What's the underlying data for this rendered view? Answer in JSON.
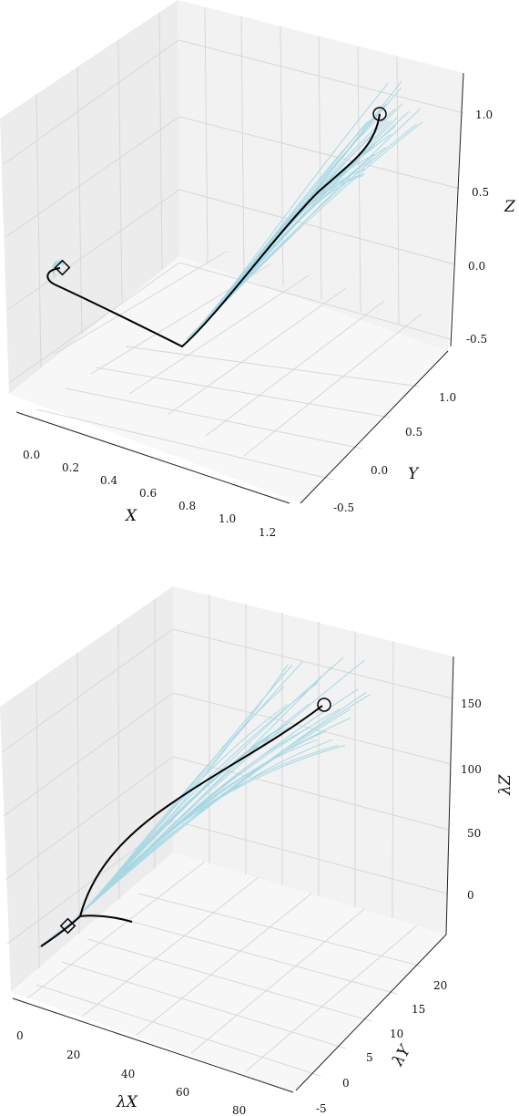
{
  "chart_data": [
    {
      "type": "line3d",
      "title": "",
      "axes": {
        "x": {
          "label": "X",
          "ticks": [
            "0.0",
            "0.2",
            "0.4",
            "0.6",
            "0.8",
            "1.0",
            "1.2"
          ]
        },
        "y": {
          "label": "Y",
          "ticks": [
            "-0.5",
            "0.0",
            "0.5",
            "1.0"
          ]
        },
        "z": {
          "label": "Z",
          "ticks": [
            "-0.5",
            "0.0",
            "0.5",
            "1.0"
          ]
        }
      },
      "series": [
        {
          "role": "sample trajectories",
          "color": "#a6d8e4",
          "count": 25
        },
        {
          "role": "mean trajectory",
          "color": "#000000"
        }
      ],
      "markers": [
        {
          "shape": "diamond",
          "at": "start"
        },
        {
          "shape": "circle",
          "at": "end"
        }
      ],
      "grid": true
    },
    {
      "type": "line3d",
      "title": "",
      "axes": {
        "x": {
          "label": "λX",
          "ticks": [
            "0",
            "20",
            "40",
            "60",
            "80"
          ]
        },
        "y": {
          "label": "λY",
          "ticks": [
            "-5",
            "0",
            "5",
            "10",
            "15",
            "20"
          ]
        },
        "z": {
          "label": "λZ",
          "ticks": [
            "0",
            "50",
            "100",
            "150"
          ]
        }
      },
      "series": [
        {
          "role": "sample trajectories",
          "color": "#a6d8e4",
          "count": 25
        },
        {
          "role": "mean trajectory",
          "color": "#000000"
        }
      ],
      "markers": [
        {
          "shape": "diamond",
          "at": "start"
        },
        {
          "shape": "circle",
          "at": "end"
        }
      ],
      "grid": true
    }
  ],
  "colors": {
    "sample": "#a6d8e4",
    "mean": "#000000",
    "grid": "#d9d9d9",
    "pane": "#f2f2f2"
  }
}
